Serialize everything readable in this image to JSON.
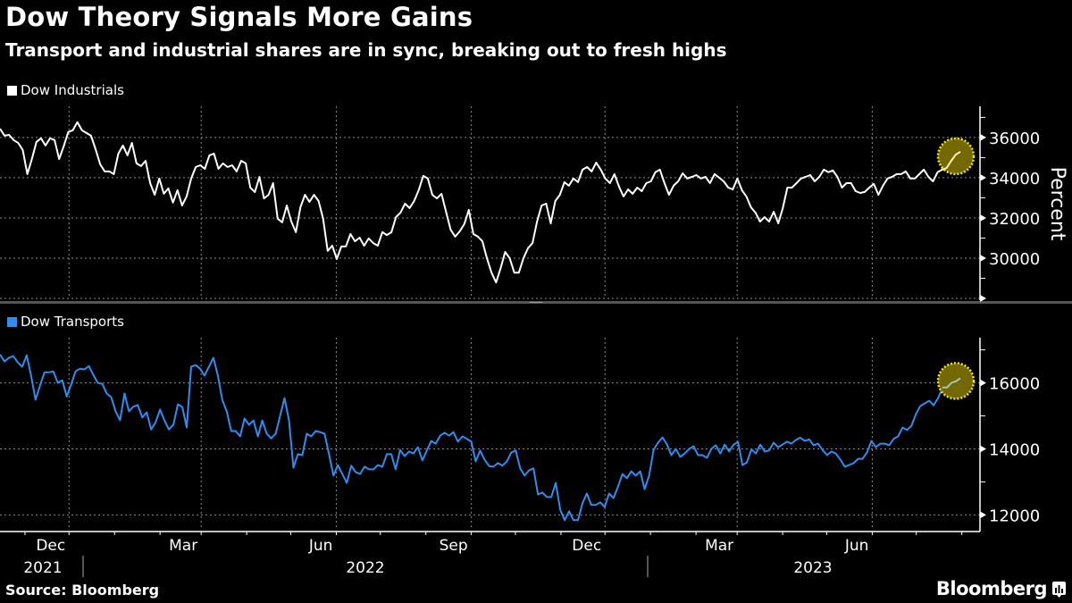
{
  "header": {
    "title": "Dow Theory Signals More Gains",
    "subtitle": "Transport and industrial shares are in sync, breaking out to fresh highs"
  },
  "footer": {
    "source": "Source: Bloomberg",
    "brand": "Bloomberg"
  },
  "colors": {
    "background": "#000000",
    "industrials": "#ffffff",
    "transports": "#2d8ef0",
    "highlight_fill": "#7a6e00",
    "highlight_border": "#f2e61a",
    "grid": "#8a8a8a"
  },
  "chart_data": [
    {
      "type": "line",
      "panel": "top",
      "legend": "Dow Industrials",
      "ylabel": "Percent",
      "yticks": [
        30000,
        32000,
        34000,
        36000
      ],
      "ylim": [
        28000,
        37550
      ],
      "x_range": [
        "2021-10-15",
        "2023-07-31"
      ],
      "grid": true,
      "highlight": "latest values circled",
      "series": [
        {
          "name": "Dow Industrials",
          "values": [
            36440,
            36090,
            36130,
            35870,
            35730,
            35380,
            34180,
            34930,
            35780,
            35960,
            35600,
            35960,
            35870,
            34930,
            35560,
            36270,
            36360,
            36760,
            36360,
            36220,
            36090,
            35420,
            34670,
            34310,
            34310,
            34180,
            35200,
            35600,
            35110,
            35730,
            34710,
            34580,
            34840,
            33730,
            33150,
            33960,
            33200,
            33470,
            32760,
            33380,
            32620,
            33070,
            33960,
            34530,
            34620,
            34440,
            35110,
            35200,
            34440,
            34710,
            34530,
            34620,
            34310,
            34840,
            34710,
            33510,
            33280,
            34040,
            32970,
            33150,
            33730,
            31960,
            31780,
            32620,
            31820,
            31290,
            32530,
            33150,
            32800,
            33150,
            32840,
            31960,
            30360,
            30620,
            29960,
            30580,
            30580,
            31200,
            30840,
            31020,
            30620,
            30980,
            30750,
            30620,
            31290,
            31150,
            31290,
            32040,
            32260,
            32710,
            32490,
            32840,
            33380,
            34090,
            33960,
            33150,
            32970,
            33200,
            32310,
            31420,
            31070,
            31330,
            31690,
            32400,
            31200,
            31070,
            30840,
            29990,
            29280,
            28790,
            29500,
            30310,
            29990,
            29280,
            29280,
            29990,
            30490,
            30750,
            31820,
            32620,
            32710,
            31730,
            32840,
            33150,
            33780,
            33600,
            33960,
            33780,
            34400,
            34530,
            34310,
            34750,
            34400,
            33960,
            33730,
            34180,
            33560,
            33070,
            33420,
            33200,
            33510,
            33330,
            33730,
            33820,
            34270,
            34400,
            33730,
            33150,
            33600,
            33820,
            34220,
            33960,
            34040,
            34130,
            33960,
            34040,
            33730,
            34180,
            34000,
            33820,
            33510,
            33420,
            33960,
            33380,
            33070,
            32530,
            32260,
            31820,
            32040,
            31820,
            32310,
            31730,
            32490,
            33510,
            33510,
            33730,
            33960,
            34040,
            34130,
            33820,
            34040,
            34400,
            34270,
            34360,
            34040,
            33510,
            33730,
            33730,
            33330,
            33240,
            33290,
            33510,
            33690,
            33150,
            33600,
            33960,
            34040,
            34180,
            34180,
            34310,
            33960,
            33960,
            34180,
            34400,
            34040,
            33820,
            34270,
            34400,
            34490,
            34840,
            35150,
            35290
          ]
        }
      ]
    },
    {
      "type": "line",
      "panel": "bottom",
      "legend": "Dow Transports",
      "yticks": [
        12000,
        14000,
        16000
      ],
      "ylim": [
        11550,
        17370
      ],
      "x_range": [
        "2021-10-15",
        "2023-07-31"
      ],
      "xtick_labels": [
        "Dec",
        "Mar",
        "Jun",
        "Sep",
        "Dec",
        "Mar",
        "Jun"
      ],
      "xtick_dates": [
        "2021-12-01",
        "2022-03-01",
        "2022-06-01",
        "2022-09-01",
        "2022-12-01",
        "2023-03-01",
        "2023-06-01"
      ],
      "year_labels": [
        "2021",
        "2022",
        "2023"
      ],
      "grid": true,
      "highlight": "latest values circled",
      "series": [
        {
          "name": "Dow Transports",
          "values": [
            16860,
            16650,
            16760,
            16810,
            16620,
            16490,
            16840,
            16220,
            15490,
            15920,
            16320,
            16320,
            16350,
            16000,
            16080,
            15590,
            15950,
            16350,
            16430,
            16410,
            16510,
            16240,
            16000,
            15970,
            15680,
            15570,
            15140,
            14870,
            15680,
            15140,
            15280,
            15330,
            14950,
            15110,
            14590,
            14810,
            15190,
            14860,
            14590,
            14730,
            15350,
            15270,
            14650,
            16490,
            16540,
            16430,
            16220,
            16490,
            16760,
            16220,
            15490,
            15140,
            14540,
            14540,
            14380,
            14920,
            14730,
            14860,
            14380,
            14860,
            14460,
            14320,
            14460,
            15000,
            15540,
            14860,
            13430,
            13840,
            13810,
            14460,
            14380,
            14540,
            14510,
            14460,
            13840,
            13190,
            13510,
            13240,
            12970,
            13490,
            13300,
            13240,
            13460,
            13380,
            13380,
            13510,
            13460,
            13840,
            13840,
            13380,
            13970,
            13780,
            13920,
            13860,
            14050,
            13650,
            13950,
            14240,
            14160,
            14400,
            14490,
            14400,
            14510,
            14220,
            14380,
            14300,
            14220,
            13620,
            13950,
            13670,
            13480,
            13460,
            13570,
            13490,
            13620,
            13890,
            13950,
            13410,
            13190,
            13350,
            13410,
            12620,
            12680,
            12540,
            12540,
            12970,
            12160,
            11840,
            12110,
            11840,
            11840,
            12350,
            12650,
            12300,
            12300,
            12380,
            12240,
            12650,
            12510,
            12860,
            13240,
            13110,
            13320,
            13190,
            13320,
            12780,
            13190,
            13970,
            14190,
            14350,
            14140,
            13810,
            14000,
            13760,
            13860,
            14000,
            14080,
            13810,
            13810,
            13730,
            14000,
            14110,
            13860,
            14130,
            13920,
            14130,
            14210,
            13510,
            13590,
            13990,
            13860,
            14130,
            13920,
            13950,
            14190,
            14050,
            14130,
            14220,
            14160,
            14270,
            14340,
            14240,
            14290,
            14110,
            14160,
            13970,
            13810,
            13920,
            13860,
            13680,
            13460,
            13510,
            13570,
            13700,
            13700,
            13890,
            14240,
            14050,
            14160,
            14160,
            14110,
            14300,
            14380,
            14650,
            14570,
            14700,
            15050,
            15300,
            15380,
            15460,
            15320,
            15540,
            15860,
            15860,
            16000,
            16050,
            16140
          ]
        }
      ]
    }
  ]
}
